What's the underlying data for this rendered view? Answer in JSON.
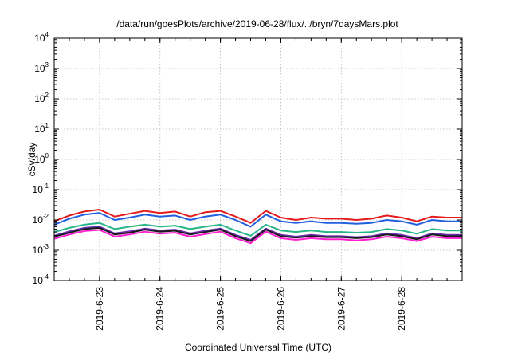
{
  "chart_data": {
    "type": "line",
    "title": "/data/run/goesPlots/archive/2019-06-28/flux/../bryn/7daysMars.plot",
    "xlabel": "Coordinated Universal Time (UTC)",
    "ylabel": "cSv/day",
    "yscale": "log",
    "ylim": [
      0.0001,
      10000
    ],
    "y_ticks": [
      {
        "base": "10",
        "exp": "-4",
        "value": 0.0001
      },
      {
        "base": "10",
        "exp": "-3",
        "value": 0.001
      },
      {
        "base": "10",
        "exp": "-2",
        "value": 0.01
      },
      {
        "base": "10",
        "exp": "-1",
        "value": 0.1
      },
      {
        "base": "10",
        "exp": "0",
        "value": 1
      },
      {
        "base": "10",
        "exp": "1",
        "value": 10
      },
      {
        "base": "10",
        "exp": "2",
        "value": 100
      },
      {
        "base": "10",
        "exp": "3",
        "value": 1000
      },
      {
        "base": "10",
        "exp": "4",
        "value": 10000
      }
    ],
    "x_ticks": [
      "2019-6-23",
      "2019-6-24",
      "2019-6-25",
      "2019-6-26",
      "2019-6-27",
      "2019-6-28"
    ],
    "xlim": [
      "2019-06-22 06:00",
      "2019-06-29 00:00"
    ],
    "grid": true,
    "legend": "none",
    "x": [
      "2019-06-22 06:00",
      "2019-06-22 12:00",
      "2019-06-22 18:00",
      "2019-06-23 00:00",
      "2019-06-23 06:00",
      "2019-06-23 12:00",
      "2019-06-23 18:00",
      "2019-06-24 00:00",
      "2019-06-24 06:00",
      "2019-06-24 12:00",
      "2019-06-24 18:00",
      "2019-06-25 00:00",
      "2019-06-25 06:00",
      "2019-06-25 12:00",
      "2019-06-25 18:00",
      "2019-06-26 00:00",
      "2019-06-26 06:00",
      "2019-06-26 12:00",
      "2019-06-26 18:00",
      "2019-06-27 00:00",
      "2019-06-27 06:00",
      "2019-06-27 12:00",
      "2019-06-27 18:00",
      "2019-06-28 00:00",
      "2019-06-28 06:00",
      "2019-06-28 12:00",
      "2019-06-28 18:00",
      "2019-06-29 00:00"
    ],
    "series": [
      {
        "color": "#e41a1c",
        "values": [
          0.009,
          0.014,
          0.019,
          0.022,
          0.013,
          0.016,
          0.02,
          0.017,
          0.019,
          0.013,
          0.018,
          0.02,
          0.013,
          0.008,
          0.02,
          0.012,
          0.01,
          0.012,
          0.011,
          0.011,
          0.01,
          0.011,
          0.014,
          0.012,
          0.009,
          0.013,
          0.012,
          0.012
        ]
      },
      {
        "color": "#1f5fe0",
        "values": [
          0.007,
          0.011,
          0.015,
          0.017,
          0.01,
          0.012,
          0.015,
          0.013,
          0.014,
          0.01,
          0.013,
          0.015,
          0.01,
          0.006,
          0.015,
          0.009,
          0.008,
          0.009,
          0.008,
          0.008,
          0.0075,
          0.008,
          0.01,
          0.009,
          0.007,
          0.01,
          0.009,
          0.009
        ]
      },
      {
        "color": "#2ab48a",
        "values": [
          0.004,
          0.0055,
          0.007,
          0.008,
          0.005,
          0.006,
          0.007,
          0.006,
          0.0065,
          0.005,
          0.006,
          0.007,
          0.0045,
          0.003,
          0.007,
          0.0045,
          0.004,
          0.0045,
          0.004,
          0.004,
          0.0038,
          0.004,
          0.005,
          0.0045,
          0.0035,
          0.005,
          0.0045,
          0.0045
        ]
      },
      {
        "color": "#6b2fb0",
        "values": [
          0.003,
          0.0042,
          0.0055,
          0.006,
          0.0036,
          0.0042,
          0.0052,
          0.0045,
          0.0048,
          0.0036,
          0.0044,
          0.0052,
          0.0032,
          0.0022,
          0.0052,
          0.0032,
          0.0028,
          0.0032,
          0.0029,
          0.0029,
          0.0027,
          0.0029,
          0.0036,
          0.0032,
          0.0025,
          0.0036,
          0.0032,
          0.0032
        ]
      },
      {
        "color": "#1a1a1a",
        "values": [
          0.0028,
          0.0038,
          0.005,
          0.0055,
          0.0033,
          0.0038,
          0.0048,
          0.0041,
          0.0044,
          0.0033,
          0.004,
          0.0048,
          0.0029,
          0.002,
          0.0048,
          0.0029,
          0.0026,
          0.0029,
          0.0027,
          0.0027,
          0.0025,
          0.0027,
          0.0033,
          0.0029,
          0.0023,
          0.0033,
          0.0029,
          0.0029
        ]
      },
      {
        "color": "#ff1fd0",
        "values": [
          0.0024,
          0.0033,
          0.0043,
          0.0047,
          0.0028,
          0.0033,
          0.0041,
          0.0035,
          0.0038,
          0.0028,
          0.0034,
          0.0041,
          0.0025,
          0.0017,
          0.0041,
          0.0025,
          0.0022,
          0.0025,
          0.0023,
          0.0023,
          0.0021,
          0.0023,
          0.0028,
          0.0025,
          0.002,
          0.0028,
          0.0025,
          0.0025
        ]
      }
    ]
  }
}
